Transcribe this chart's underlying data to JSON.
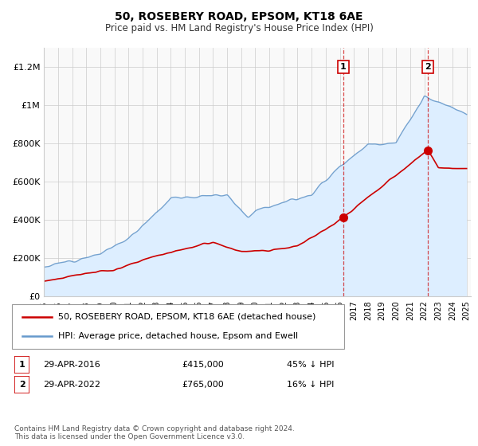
{
  "title": "50, ROSEBERY ROAD, EPSOM, KT18 6AE",
  "subtitle": "Price paid vs. HM Land Registry's House Price Index (HPI)",
  "ylim": [
    0,
    1300000
  ],
  "yticks": [
    0,
    200000,
    400000,
    600000,
    800000,
    1000000,
    1200000
  ],
  "ytick_labels": [
    "£0",
    "£200K",
    "£400K",
    "£600K",
    "£800K",
    "£1M",
    "£1.2M"
  ],
  "sale1_year": 2016.25,
  "sale1_price": 415000,
  "sale2_year": 2022.25,
  "sale2_price": 765000,
  "red_color": "#cc0000",
  "blue_color": "#6699cc",
  "blue_fill": "#ddeeff",
  "grid_color": "#cccccc",
  "bg_color": "#f9f9f9",
  "legend_label_red": "50, ROSEBERY ROAD, EPSOM, KT18 6AE (detached house)",
  "legend_label_blue": "HPI: Average price, detached house, Epsom and Ewell",
  "footnote": "Contains HM Land Registry data © Crown copyright and database right 2024.\nThis data is licensed under the Open Government Licence v3.0."
}
